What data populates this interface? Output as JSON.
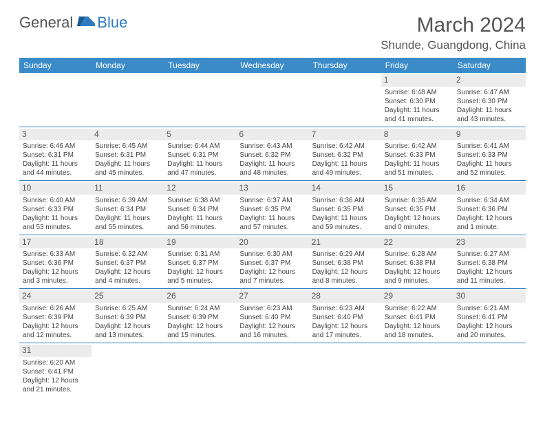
{
  "brand": {
    "part1": "General",
    "part2": "Blue"
  },
  "title": "March 2024",
  "location": "Shunde, Guangdong, China",
  "colors": {
    "header_bg": "#3b8bc9",
    "header_text": "#ffffff",
    "row_border": "#2f7bbf",
    "daynum_bg": "#ececec",
    "text": "#444444",
    "brand_blue": "#2f7bbf",
    "brand_gray": "#555555"
  },
  "weekdays": [
    "Sunday",
    "Monday",
    "Tuesday",
    "Wednesday",
    "Thursday",
    "Friday",
    "Saturday"
  ],
  "weeks": [
    [
      null,
      null,
      null,
      null,
      null,
      {
        "d": "1",
        "sr": "Sunrise: 6:48 AM",
        "ss": "Sunset: 6:30 PM",
        "dl1": "Daylight: 11 hours",
        "dl2": "and 41 minutes."
      },
      {
        "d": "2",
        "sr": "Sunrise: 6:47 AM",
        "ss": "Sunset: 6:30 PM",
        "dl1": "Daylight: 11 hours",
        "dl2": "and 43 minutes."
      }
    ],
    [
      {
        "d": "3",
        "sr": "Sunrise: 6:46 AM",
        "ss": "Sunset: 6:31 PM",
        "dl1": "Daylight: 11 hours",
        "dl2": "and 44 minutes."
      },
      {
        "d": "4",
        "sr": "Sunrise: 6:45 AM",
        "ss": "Sunset: 6:31 PM",
        "dl1": "Daylight: 11 hours",
        "dl2": "and 45 minutes."
      },
      {
        "d": "5",
        "sr": "Sunrise: 6:44 AM",
        "ss": "Sunset: 6:31 PM",
        "dl1": "Daylight: 11 hours",
        "dl2": "and 47 minutes."
      },
      {
        "d": "6",
        "sr": "Sunrise: 6:43 AM",
        "ss": "Sunset: 6:32 PM",
        "dl1": "Daylight: 11 hours",
        "dl2": "and 48 minutes."
      },
      {
        "d": "7",
        "sr": "Sunrise: 6:42 AM",
        "ss": "Sunset: 6:32 PM",
        "dl1": "Daylight: 11 hours",
        "dl2": "and 49 minutes."
      },
      {
        "d": "8",
        "sr": "Sunrise: 6:42 AM",
        "ss": "Sunset: 6:33 PM",
        "dl1": "Daylight: 11 hours",
        "dl2": "and 51 minutes."
      },
      {
        "d": "9",
        "sr": "Sunrise: 6:41 AM",
        "ss": "Sunset: 6:33 PM",
        "dl1": "Daylight: 11 hours",
        "dl2": "and 52 minutes."
      }
    ],
    [
      {
        "d": "10",
        "sr": "Sunrise: 6:40 AM",
        "ss": "Sunset: 6:33 PM",
        "dl1": "Daylight: 11 hours",
        "dl2": "and 53 minutes."
      },
      {
        "d": "11",
        "sr": "Sunrise: 6:39 AM",
        "ss": "Sunset: 6:34 PM",
        "dl1": "Daylight: 11 hours",
        "dl2": "and 55 minutes."
      },
      {
        "d": "12",
        "sr": "Sunrise: 6:38 AM",
        "ss": "Sunset: 6:34 PM",
        "dl1": "Daylight: 11 hours",
        "dl2": "and 56 minutes."
      },
      {
        "d": "13",
        "sr": "Sunrise: 6:37 AM",
        "ss": "Sunset: 6:35 PM",
        "dl1": "Daylight: 11 hours",
        "dl2": "and 57 minutes."
      },
      {
        "d": "14",
        "sr": "Sunrise: 6:36 AM",
        "ss": "Sunset: 6:35 PM",
        "dl1": "Daylight: 11 hours",
        "dl2": "and 59 minutes."
      },
      {
        "d": "15",
        "sr": "Sunrise: 6:35 AM",
        "ss": "Sunset: 6:35 PM",
        "dl1": "Daylight: 12 hours",
        "dl2": "and 0 minutes."
      },
      {
        "d": "16",
        "sr": "Sunrise: 6:34 AM",
        "ss": "Sunset: 6:36 PM",
        "dl1": "Daylight: 12 hours",
        "dl2": "and 1 minute."
      }
    ],
    [
      {
        "d": "17",
        "sr": "Sunrise: 6:33 AM",
        "ss": "Sunset: 6:36 PM",
        "dl1": "Daylight: 12 hours",
        "dl2": "and 3 minutes."
      },
      {
        "d": "18",
        "sr": "Sunrise: 6:32 AM",
        "ss": "Sunset: 6:37 PM",
        "dl1": "Daylight: 12 hours",
        "dl2": "and 4 minutes."
      },
      {
        "d": "19",
        "sr": "Sunrise: 6:31 AM",
        "ss": "Sunset: 6:37 PM",
        "dl1": "Daylight: 12 hours",
        "dl2": "and 5 minutes."
      },
      {
        "d": "20",
        "sr": "Sunrise: 6:30 AM",
        "ss": "Sunset: 6:37 PM",
        "dl1": "Daylight: 12 hours",
        "dl2": "and 7 minutes."
      },
      {
        "d": "21",
        "sr": "Sunrise: 6:29 AM",
        "ss": "Sunset: 6:38 PM",
        "dl1": "Daylight: 12 hours",
        "dl2": "and 8 minutes."
      },
      {
        "d": "22",
        "sr": "Sunrise: 6:28 AM",
        "ss": "Sunset: 6:38 PM",
        "dl1": "Daylight: 12 hours",
        "dl2": "and 9 minutes."
      },
      {
        "d": "23",
        "sr": "Sunrise: 6:27 AM",
        "ss": "Sunset: 6:38 PM",
        "dl1": "Daylight: 12 hours",
        "dl2": "and 11 minutes."
      }
    ],
    [
      {
        "d": "24",
        "sr": "Sunrise: 6:26 AM",
        "ss": "Sunset: 6:39 PM",
        "dl1": "Daylight: 12 hours",
        "dl2": "and 12 minutes."
      },
      {
        "d": "25",
        "sr": "Sunrise: 6:25 AM",
        "ss": "Sunset: 6:39 PM",
        "dl1": "Daylight: 12 hours",
        "dl2": "and 13 minutes."
      },
      {
        "d": "26",
        "sr": "Sunrise: 6:24 AM",
        "ss": "Sunset: 6:39 PM",
        "dl1": "Daylight: 12 hours",
        "dl2": "and 15 minutes."
      },
      {
        "d": "27",
        "sr": "Sunrise: 6:23 AM",
        "ss": "Sunset: 6:40 PM",
        "dl1": "Daylight: 12 hours",
        "dl2": "and 16 minutes."
      },
      {
        "d": "28",
        "sr": "Sunrise: 6:23 AM",
        "ss": "Sunset: 6:40 PM",
        "dl1": "Daylight: 12 hours",
        "dl2": "and 17 minutes."
      },
      {
        "d": "29",
        "sr": "Sunrise: 6:22 AM",
        "ss": "Sunset: 6:41 PM",
        "dl1": "Daylight: 12 hours",
        "dl2": "and 18 minutes."
      },
      {
        "d": "30",
        "sr": "Sunrise: 6:21 AM",
        "ss": "Sunset: 6:41 PM",
        "dl1": "Daylight: 12 hours",
        "dl2": "and 20 minutes."
      }
    ],
    [
      {
        "d": "31",
        "sr": "Sunrise: 6:20 AM",
        "ss": "Sunset: 6:41 PM",
        "dl1": "Daylight: 12 hours",
        "dl2": "and 21 minutes."
      },
      null,
      null,
      null,
      null,
      null,
      null
    ]
  ]
}
